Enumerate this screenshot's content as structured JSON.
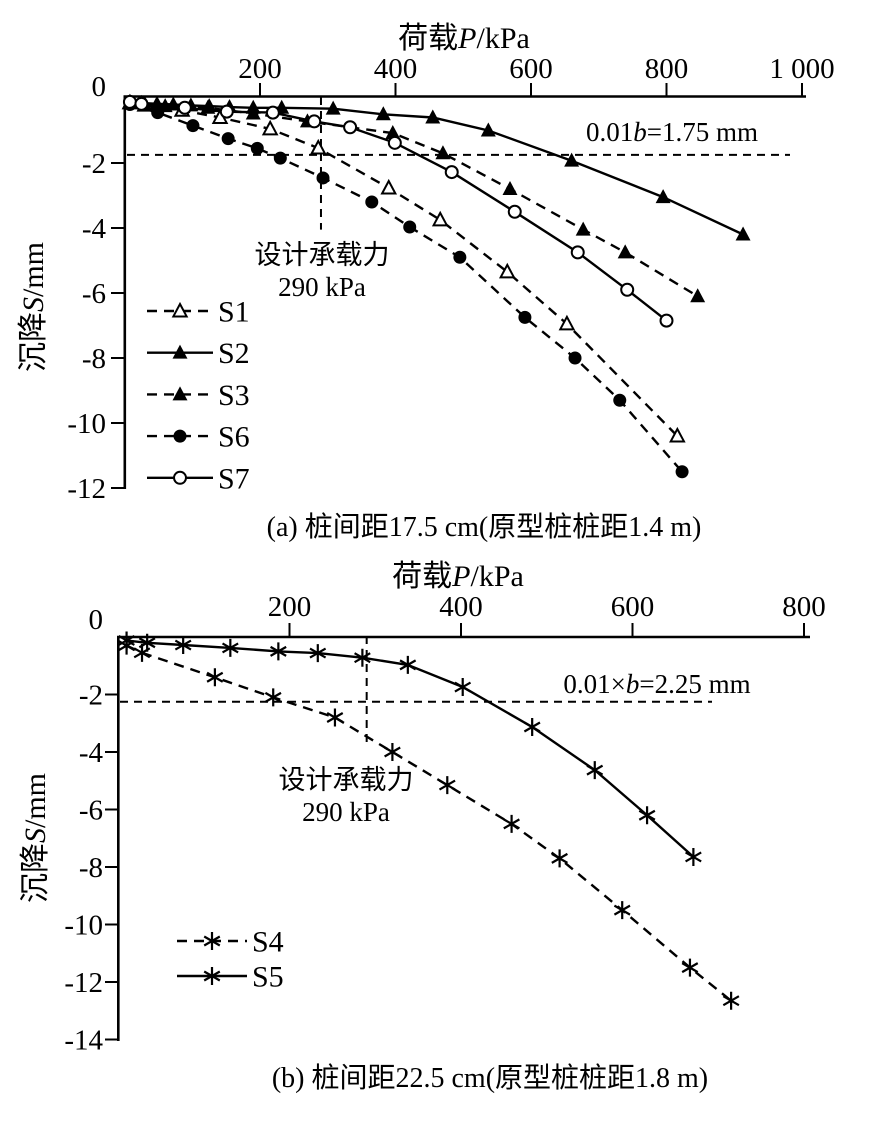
{
  "figure": {
    "background": "#ffffff",
    "ink": "#000000"
  },
  "chart_data": [
    {
      "id": "a",
      "type": "line",
      "title_parts": {
        "prefix": "荷载",
        "var": "P",
        "suffix": "/kPa"
      },
      "ylabel_parts": {
        "prefix": "沉降",
        "var": "S",
        "suffix": "/mm"
      },
      "caption": "(a) 桩间距17.5 cm(原型桩桩距1.4 m)",
      "xlim": [
        0,
        1000
      ],
      "ylim": [
        -12,
        0
      ],
      "grid": false,
      "legend_position": "lower-left",
      "x_ticks": [
        {
          "v": 200,
          "label": "200"
        },
        {
          "v": 400,
          "label": "400"
        },
        {
          "v": 600,
          "label": "600"
        },
        {
          "v": 800,
          "label": "800"
        },
        {
          "v": 1000,
          "label": "1 000"
        }
      ],
      "y_ticks": [
        {
          "v": 0,
          "label": "0"
        },
        {
          "v": -2,
          "label": "-2"
        },
        {
          "v": -4,
          "label": "-4"
        },
        {
          "v": -6,
          "label": "-6"
        },
        {
          "v": -8,
          "label": "-8"
        },
        {
          "v": -10,
          "label": "-10"
        },
        {
          "v": -12,
          "label": "-12"
        }
      ],
      "reference_lines": {
        "settlement_limit_mm": -1.75,
        "design_load_kpa": 290
      },
      "annotations": {
        "limit_parts": {
          "prefix": "0.01",
          "var": "b",
          "suffix": "=1.75 mm"
        },
        "design_line1": "设计承载力",
        "design_line2": "290 kPa"
      },
      "series": [
        {
          "name": "S1",
          "line": "dashed",
          "marker": "triangle-open",
          "points": [
            [
              8,
              -0.15
            ],
            [
              30,
              -0.22
            ],
            [
              85,
              -0.38
            ],
            [
              141,
              -0.6
            ],
            [
              215,
              -0.95
            ],
            [
              286,
              -1.54
            ],
            [
              390,
              -2.77
            ],
            [
              466,
              -3.75
            ],
            [
              565,
              -5.35
            ],
            [
              653,
              -6.95
            ],
            [
              816,
              -10.4
            ]
          ]
        },
        {
          "name": "S2",
          "line": "solid",
          "marker": "triangle-filled",
          "points": [
            [
              8,
              -0.12
            ],
            [
              25,
              -0.15
            ],
            [
              48,
              -0.18
            ],
            [
              72,
              -0.2
            ],
            [
              98,
              -0.23
            ],
            [
              125,
              -0.25
            ],
            [
              155,
              -0.28
            ],
            [
              190,
              -0.3
            ],
            [
              232,
              -0.3
            ],
            [
              308,
              -0.33
            ],
            [
              382,
              -0.5
            ],
            [
              455,
              -0.6
            ],
            [
              537,
              -1.0
            ],
            [
              660,
              -1.93
            ],
            [
              795,
              -3.05
            ],
            [
              913,
              -4.2
            ]
          ]
        },
        {
          "name": "S3",
          "line": "dashed",
          "marker": "triangle-filled",
          "points": [
            [
              8,
              -0.15
            ],
            [
              30,
              -0.2
            ],
            [
              60,
              -0.25
            ],
            [
              123,
              -0.3
            ],
            [
              190,
              -0.48
            ],
            [
              270,
              -0.72
            ],
            [
              396,
              -1.08
            ],
            [
              470,
              -1.7
            ],
            [
              569,
              -2.8
            ],
            [
              677,
              -4.05
            ],
            [
              739,
              -4.75
            ],
            [
              846,
              -6.1
            ]
          ]
        },
        {
          "name": "S6",
          "line": "dashed",
          "marker": "circle-filled",
          "points": [
            [
              8,
              -0.2
            ],
            [
              49,
              -0.45
            ],
            [
              101,
              -0.85
            ],
            [
              153,
              -1.25
            ],
            [
              196,
              -1.55
            ],
            [
              230,
              -1.85
            ],
            [
              293,
              -2.46
            ],
            [
              365,
              -3.2
            ],
            [
              421,
              -3.97
            ],
            [
              495,
              -4.9
            ],
            [
              591,
              -6.75
            ],
            [
              665,
              -8.0
            ],
            [
              731,
              -9.3
            ],
            [
              823,
              -11.5
            ]
          ]
        },
        {
          "name": "S7",
          "line": "solid",
          "marker": "circle-open",
          "points": [
            [
              8,
              -0.12
            ],
            [
              25,
              -0.18
            ],
            [
              89,
              -0.3
            ],
            [
              151,
              -0.42
            ],
            [
              219,
              -0.45
            ],
            [
              280,
              -0.72
            ],
            [
              333,
              -0.9
            ],
            [
              399,
              -1.38
            ],
            [
              483,
              -2.28
            ],
            [
              576,
              -3.5
            ],
            [
              669,
              -4.75
            ],
            [
              742,
              -5.9
            ],
            [
              800,
              -6.85
            ]
          ]
        }
      ]
    },
    {
      "id": "b",
      "type": "line",
      "title_parts": {
        "prefix": "荷载",
        "var": "P",
        "suffix": "/kPa"
      },
      "ylabel_parts": {
        "prefix": "沉降",
        "var": "S",
        "suffix": "/mm"
      },
      "caption": "(b) 桩间距22.5 cm(原型桩桩距1.8 m)",
      "xlim": [
        0,
        800
      ],
      "ylim": [
        -14,
        0
      ],
      "grid": false,
      "legend_position": "lower-left",
      "x_ticks": [
        {
          "v": 200,
          "label": "200"
        },
        {
          "v": 400,
          "label": "400"
        },
        {
          "v": 600,
          "label": "600"
        },
        {
          "v": 800,
          "label": "800"
        }
      ],
      "y_ticks": [
        {
          "v": 0,
          "label": "0"
        },
        {
          "v": -2,
          "label": "-2"
        },
        {
          "v": -4,
          "label": "-4"
        },
        {
          "v": -6,
          "label": "-6"
        },
        {
          "v": -8,
          "label": "-8"
        },
        {
          "v": -10,
          "label": "-10"
        },
        {
          "v": -12,
          "label": "-12"
        },
        {
          "v": -14,
          "label": "-14"
        }
      ],
      "reference_lines": {
        "settlement_limit_mm": -2.25,
        "design_load_kpa": 290
      },
      "annotations": {
        "limit_parts": {
          "prefix": "0.01×",
          "var": "b",
          "suffix": "=2.25 mm"
        },
        "design_line1": "设计承载力",
        "design_line2": "290 kPa"
      },
      "series": [
        {
          "name": "S4",
          "line": "dashed",
          "marker": "asterisk",
          "points": [
            [
              10,
              -0.3
            ],
            [
              28,
              -0.55
            ],
            [
              113,
              -1.4
            ],
            [
              181,
              -2.1
            ],
            [
              253,
              -2.8
            ],
            [
              320,
              -4.0
            ],
            [
              384,
              -5.15
            ],
            [
              459,
              -6.5
            ],
            [
              515,
              -7.7
            ],
            [
              588,
              -9.5
            ],
            [
              667,
              -11.5
            ],
            [
              715,
              -12.65
            ]
          ]
        },
        {
          "name": "S5",
          "line": "solid",
          "marker": "asterisk",
          "points": [
            [
              10,
              -0.12
            ],
            [
              34,
              -0.2
            ],
            [
              76,
              -0.28
            ],
            [
              131,
              -0.38
            ],
            [
              187,
              -0.5
            ],
            [
              233,
              -0.56
            ],
            [
              285,
              -0.72
            ],
            [
              338,
              -0.97
            ],
            [
              402,
              -1.74
            ],
            [
              483,
              -3.13
            ],
            [
              556,
              -4.63
            ],
            [
              617,
              -6.2
            ],
            [
              671,
              -7.65
            ]
          ]
        }
      ]
    }
  ]
}
